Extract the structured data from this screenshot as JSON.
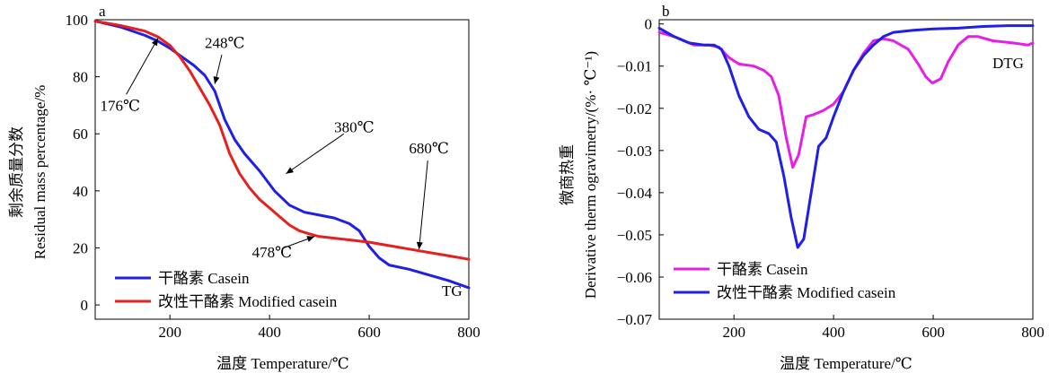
{
  "chart_data": [
    {
      "panel": "a",
      "type": "line",
      "title": "",
      "xlabel": "温度 Temperature/℃",
      "ylabel_cn": "剩余质量分数",
      "ylabel_en": "Residual mass percentage/%",
      "xlim": [
        50,
        800
      ],
      "ylim": [
        -5,
        100
      ],
      "xticks": [
        200,
        400,
        600,
        800
      ],
      "yticks": [
        0,
        20,
        40,
        60,
        80,
        100
      ],
      "grid": false,
      "legend_position": "bottom-left",
      "curve_label": "TG",
      "series": [
        {
          "name": "干酪素 Casein",
          "color": "#1f1fe6",
          "points": [
            [
              50,
              99.5
            ],
            [
              100,
              97.5
            ],
            [
              150,
              94.5
            ],
            [
              176,
              92.5
            ],
            [
              200,
              90
            ],
            [
              220,
              87.5
            ],
            [
              248,
              84
            ],
            [
              270,
              80.5
            ],
            [
              290,
              75
            ],
            [
              310,
              65
            ],
            [
              330,
              58
            ],
            [
              350,
              53
            ],
            [
              380,
              47
            ],
            [
              410,
              40
            ],
            [
              440,
              35
            ],
            [
              470,
              32.5
            ],
            [
              500,
              31.5
            ],
            [
              530,
              30.5
            ],
            [
              560,
              28.5
            ],
            [
              580,
              26
            ],
            [
              600,
              20.5
            ],
            [
              620,
              16.5
            ],
            [
              640,
              14
            ],
            [
              680,
              12.5
            ],
            [
              720,
              10.5
            ],
            [
              760,
              8.5
            ],
            [
              800,
              6
            ]
          ]
        },
        {
          "name": "改性干酪素 Modified casein",
          "color": "#e61f1f",
          "points": [
            [
              50,
              99.5
            ],
            [
              100,
              98
            ],
            [
              150,
              96
            ],
            [
              176,
              94
            ],
            [
              200,
              91
            ],
            [
              220,
              87
            ],
            [
              240,
              82
            ],
            [
              260,
              76
            ],
            [
              280,
              70
            ],
            [
              300,
              63
            ],
            [
              320,
              53
            ],
            [
              340,
              46
            ],
            [
              360,
              41
            ],
            [
              380,
              37
            ],
            [
              400,
              34
            ],
            [
              420,
              31
            ],
            [
              440,
              28
            ],
            [
              460,
              26
            ],
            [
              478,
              25
            ],
            [
              500,
              24
            ],
            [
              550,
              23
            ],
            [
              600,
              22
            ],
            [
              650,
              20.5
            ],
            [
              700,
              19
            ],
            [
              750,
              17.5
            ],
            [
              800,
              16
            ]
          ]
        }
      ],
      "annotations": [
        {
          "text": "248℃",
          "at": [
            290,
            77.5
          ],
          "label_at": [
            310,
            92
          ]
        },
        {
          "text": "176℃",
          "at": [
            176,
            93.5
          ],
          "label_at": [
            100,
            70
          ]
        },
        {
          "text": "380℃",
          "at": [
            433,
            46
          ],
          "label_at": [
            570,
            62.5
          ]
        },
        {
          "text": "680℃",
          "at": [
            700,
            19.5
          ],
          "label_at": [
            720,
            55
          ]
        },
        {
          "text": "478℃",
          "at": [
            490,
            24
          ],
          "label_at": [
            405,
            18.5
          ]
        }
      ]
    },
    {
      "panel": "b",
      "type": "line",
      "title": "",
      "xlabel": "温度 Temperature/℃",
      "ylabel_cn": "微商热重",
      "ylabel_en": "Derivative therm ogravimetry/(%· ℃⁻¹)",
      "xlim": [
        50,
        800
      ],
      "ylim": [
        -0.07,
        0.001
      ],
      "xticks": [
        200,
        400,
        600,
        800
      ],
      "yticks": [
        0,
        -0.01,
        -0.02,
        -0.03,
        -0.04,
        -0.05,
        -0.06,
        -0.07
      ],
      "ytick_labels": [
        "0",
        "−0.01",
        "−0.02",
        "−0.03",
        "−0.04",
        "−0.05",
        "−0.06",
        "−0.07"
      ],
      "grid": false,
      "legend_position": "bottom-left",
      "curve_label": "DTG",
      "series": [
        {
          "name": "干酪素 Casein",
          "color": "#e61fe6",
          "points": [
            [
              50,
              -0.002
            ],
            [
              80,
              -0.003
            ],
            [
              120,
              -0.005
            ],
            [
              150,
              -0.005
            ],
            [
              170,
              -0.0055
            ],
            [
              190,
              -0.008
            ],
            [
              210,
              -0.0095
            ],
            [
              240,
              -0.01
            ],
            [
              260,
              -0.011
            ],
            [
              275,
              -0.0125
            ],
            [
              290,
              -0.017
            ],
            [
              305,
              -0.027
            ],
            [
              318,
              -0.034
            ],
            [
              330,
              -0.031
            ],
            [
              345,
              -0.022
            ],
            [
              360,
              -0.0215
            ],
            [
              380,
              -0.0205
            ],
            [
              400,
              -0.019
            ],
            [
              420,
              -0.016
            ],
            [
              440,
              -0.011
            ],
            [
              460,
              -0.007
            ],
            [
              480,
              -0.004
            ],
            [
              500,
              -0.0035
            ],
            [
              520,
              -0.004
            ],
            [
              550,
              -0.006
            ],
            [
              570,
              -0.0095
            ],
            [
              585,
              -0.0125
            ],
            [
              598,
              -0.014
            ],
            [
              615,
              -0.013
            ],
            [
              630,
              -0.009
            ],
            [
              650,
              -0.005
            ],
            [
              670,
              -0.003
            ],
            [
              690,
              -0.003
            ],
            [
              720,
              -0.004
            ],
            [
              760,
              -0.0045
            ],
            [
              790,
              -0.005
            ],
            [
              800,
              -0.0045
            ]
          ]
        },
        {
          "name": "改性干酪素 Modified casein",
          "color": "#1f1fe6",
          "points": [
            [
              50,
              -0.001
            ],
            [
              80,
              -0.003
            ],
            [
              110,
              -0.0045
            ],
            [
              140,
              -0.005
            ],
            [
              160,
              -0.005
            ],
            [
              175,
              -0.006
            ],
            [
              190,
              -0.01
            ],
            [
              210,
              -0.017
            ],
            [
              230,
              -0.022
            ],
            [
              250,
              -0.025
            ],
            [
              270,
              -0.026
            ],
            [
              285,
              -0.028
            ],
            [
              300,
              -0.036
            ],
            [
              315,
              -0.046
            ],
            [
              328,
              -0.053
            ],
            [
              340,
              -0.051
            ],
            [
              355,
              -0.04
            ],
            [
              370,
              -0.029
            ],
            [
              385,
              -0.027
            ],
            [
              400,
              -0.022
            ],
            [
              420,
              -0.016
            ],
            [
              440,
              -0.011
            ],
            [
              460,
              -0.0075
            ],
            [
              480,
              -0.005
            ],
            [
              500,
              -0.003
            ],
            [
              520,
              -0.002
            ],
            [
              560,
              -0.0015
            ],
            [
              600,
              -0.0012
            ],
            [
              650,
              -0.001
            ],
            [
              700,
              -0.0006
            ],
            [
              750,
              -0.0004
            ],
            [
              800,
              -0.0004
            ]
          ]
        }
      ],
      "annotations": []
    }
  ]
}
